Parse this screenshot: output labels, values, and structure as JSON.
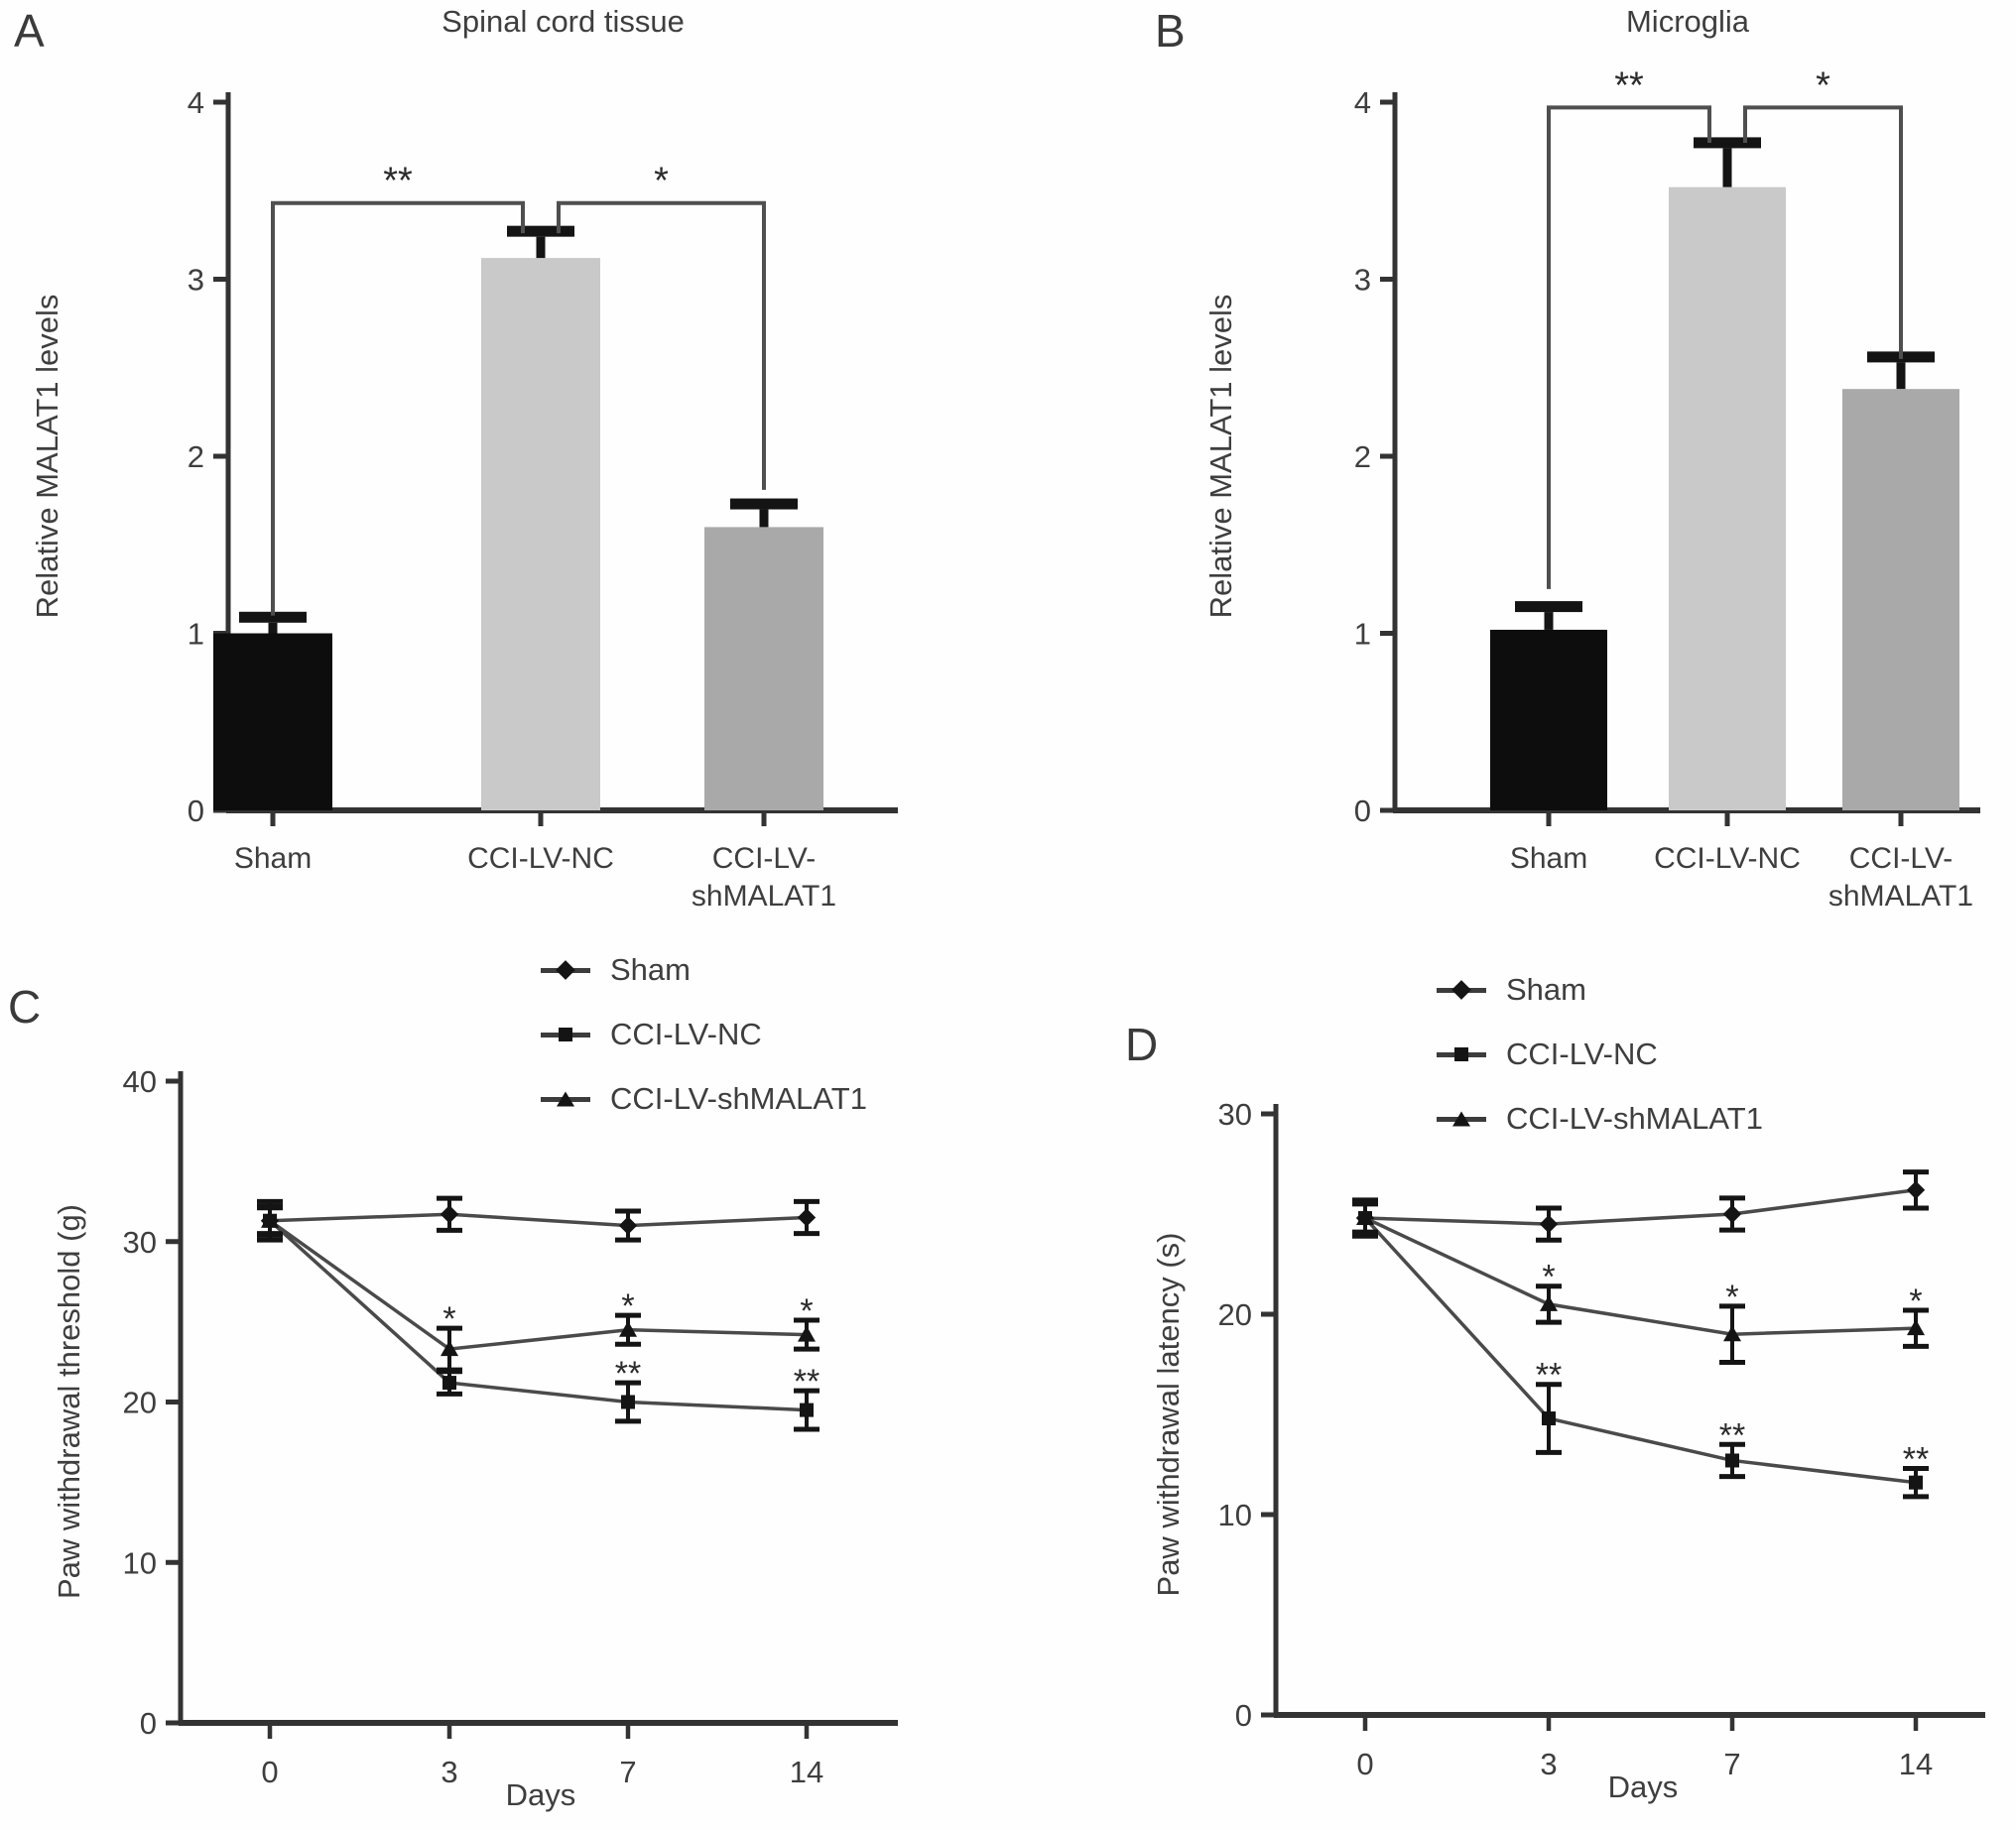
{
  "panels": {
    "a": "A",
    "b": "B",
    "c": "C",
    "d": "D"
  },
  "colors": {
    "background": "#fefefe",
    "axis": "#333333",
    "text": "#3e3e3e",
    "line": "#4a4a4a",
    "marker": "#141414",
    "error_bar": "#141414",
    "bracket": "#4f4f4f",
    "bar_black": "#0d0d0d",
    "bar_light_gray": "#c9c9c9",
    "bar_gray": "#a9a9a9"
  },
  "chart_data": [
    {
      "panel": "A",
      "type": "bar",
      "title": "Spinal cord tissue",
      "ylabel": "Relative MALAT1 levels",
      "ylim": [
        0,
        4
      ],
      "yticks": [
        0,
        1,
        2,
        3,
        4
      ],
      "grid": false,
      "categories": [
        "Sham",
        "CCI-LV-NC",
        "CCI-LV-shMALAT1"
      ],
      "category_lines": [
        [
          "Sham"
        ],
        [
          "CCI-LV-NC"
        ],
        [
          "CCI-LV-",
          "shMALAT1"
        ]
      ],
      "values": [
        1.0,
        3.12,
        1.6
      ],
      "errors": [
        0.06,
        0.12,
        0.1
      ],
      "bar_colors": [
        "#0d0d0d",
        "#c9c9c9",
        "#a9a9a9"
      ],
      "significance": [
        {
          "between": [
            0,
            1
          ],
          "label": "**",
          "y": 3.43,
          "drop_left": 2.33,
          "drop_right": 0.17
        },
        {
          "between": [
            1,
            2
          ],
          "label": "*",
          "y": 3.43,
          "drop_left": 0.17,
          "drop_right": 1.62
        }
      ]
    },
    {
      "panel": "B",
      "type": "bar",
      "title": "Microglia",
      "ylabel": "Relative MALAT1 levels",
      "ylim": [
        0,
        4
      ],
      "yticks": [
        0,
        1,
        2,
        3,
        4
      ],
      "grid": false,
      "categories": [
        "Sham",
        "CCI-LV-NC",
        "CCI-LV-shMALAT1"
      ],
      "category_lines": [
        [
          "Sham"
        ],
        [
          "CCI-LV-NC"
        ],
        [
          "CCI-LV-",
          "shMALAT1"
        ]
      ],
      "values": [
        1.02,
        3.52,
        2.38
      ],
      "errors": [
        0.1,
        0.22,
        0.15
      ],
      "bar_colors": [
        "#0d0d0d",
        "#c9c9c9",
        "#a9a9a9"
      ],
      "significance": [
        {
          "between": [
            0,
            1
          ],
          "label": "**",
          "y": 3.97,
          "drop_left": 2.72,
          "drop_right": 0.2
        },
        {
          "between": [
            1,
            2
          ],
          "label": "*",
          "y": 3.97,
          "drop_left": 0.2,
          "drop_right": 1.42
        }
      ]
    },
    {
      "panel": "C",
      "type": "line",
      "title": "",
      "ylabel": "Paw withdrawal threshold (g)",
      "xlabel": "Days",
      "ylim": [
        0,
        40
      ],
      "yticks": [
        0,
        10,
        20,
        30,
        40
      ],
      "grid": false,
      "legend_position": "top",
      "x": [
        0,
        3,
        7,
        14
      ],
      "xticklabels": [
        "0",
        "3",
        "7",
        "14"
      ],
      "series": [
        {
          "name": "Sham",
          "marker": "diamond",
          "values": [
            31.3,
            31.7,
            31.0,
            31.5
          ],
          "errors": [
            1.2,
            1.0,
            0.9,
            1.0
          ],
          "sig": [
            "",
            "",
            "",
            ""
          ]
        },
        {
          "name": "CCI-LV-NC",
          "marker": "square",
          "values": [
            31.3,
            21.2,
            20.0,
            19.5
          ],
          "errors": [
            0.8,
            0.7,
            1.2,
            1.2
          ],
          "sig": [
            "",
            "",
            "**",
            "**"
          ]
        },
        {
          "name": "CCI-LV-shMALAT1",
          "marker": "triangle",
          "values": [
            31.3,
            23.3,
            24.5,
            24.2
          ],
          "errors": [
            0.9,
            1.3,
            0.9,
            0.9
          ],
          "sig": [
            "",
            "*",
            "*",
            "*"
          ]
        }
      ]
    },
    {
      "panel": "D",
      "type": "line",
      "title": "",
      "ylabel": "Paw withdrawal latency (s)",
      "xlabel": "Days",
      "ylim": [
        0,
        30
      ],
      "yticks": [
        0,
        10,
        20,
        30
      ],
      "grid": false,
      "legend_position": "top",
      "x": [
        0,
        3,
        7,
        14
      ],
      "xticklabels": [
        "0",
        "3",
        "7",
        "14"
      ],
      "series": [
        {
          "name": "Sham",
          "marker": "diamond",
          "values": [
            24.8,
            24.5,
            25.0,
            26.2
          ],
          "errors": [
            0.9,
            0.8,
            0.8,
            0.9
          ],
          "sig": [
            "",
            "",
            "",
            ""
          ]
        },
        {
          "name": "CCI-LV-NC",
          "marker": "square",
          "values": [
            24.8,
            14.8,
            12.7,
            11.6
          ],
          "errors": [
            0.8,
            1.7,
            0.8,
            0.7
          ],
          "sig": [
            "",
            "**",
            "**",
            "**"
          ]
        },
        {
          "name": "CCI-LV-shMALAT1",
          "marker": "triangle",
          "values": [
            24.8,
            20.5,
            19.0,
            19.3
          ],
          "errors": [
            0.7,
            0.9,
            1.4,
            0.9
          ],
          "sig": [
            "",
            "*",
            "*",
            "*"
          ]
        }
      ]
    }
  ]
}
